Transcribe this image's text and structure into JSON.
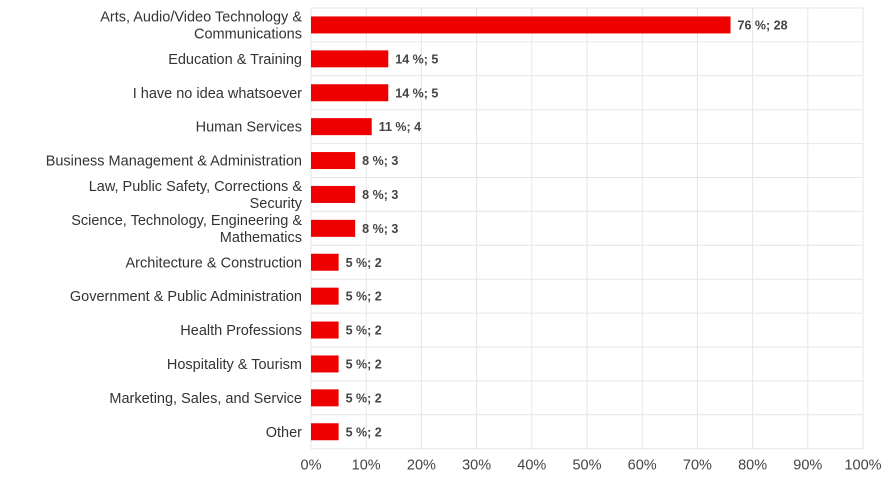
{
  "chart_data": {
    "type": "bar",
    "orientation": "horizontal",
    "categories": [
      "Arts, Audio/Video Technology & Communications",
      "Education & Training",
      "I have no idea whatsoever",
      "Human Services",
      "Business Management & Administration",
      "Law, Public Safety, Corrections & Security",
      "Science, Technology, Engineering & Mathematics",
      "Architecture & Construction",
      "Government & Public Administration",
      "Health Professions",
      "Hospitality & Tourism",
      "Marketing, Sales, and Service",
      "Other"
    ],
    "category_label_lines": [
      [
        "Arts, Audio/Video Technology &",
        "Communications"
      ],
      [
        "Education & Training"
      ],
      [
        "I have no idea whatsoever"
      ],
      [
        "Human Services"
      ],
      [
        "Business Management & Administration"
      ],
      [
        "Law, Public Safety, Corrections &",
        "Security"
      ],
      [
        "Science, Technology, Engineering &",
        "Mathematics"
      ],
      [
        "Architecture & Construction"
      ],
      [
        "Government & Public Administration"
      ],
      [
        "Health Professions"
      ],
      [
        "Hospitality & Tourism"
      ],
      [
        "Marketing, Sales, and Service"
      ],
      [
        "Other"
      ]
    ],
    "values": [
      76,
      14,
      14,
      11,
      8,
      8,
      8,
      5,
      5,
      5,
      5,
      5,
      5
    ],
    "counts": [
      28,
      5,
      5,
      4,
      3,
      3,
      3,
      2,
      2,
      2,
      2,
      2,
      2
    ],
    "data_labels": [
      "76 %; 28",
      "14 %; 5",
      "14 %; 5",
      "11 %; 4",
      "8 %; 3",
      "8 %; 3",
      "8 %; 3",
      "5 %; 2",
      "5 %; 2",
      "5 %; 2",
      "5 %; 2",
      "5 %; 2",
      "5 %; 2"
    ],
    "x_ticks": [
      "0%",
      "10%",
      "20%",
      "30%",
      "40%",
      "50%",
      "60%",
      "70%",
      "80%",
      "90%",
      "100%"
    ],
    "xlim": [
      0,
      100
    ],
    "bar_color": "#ee0000",
    "grid": true
  }
}
